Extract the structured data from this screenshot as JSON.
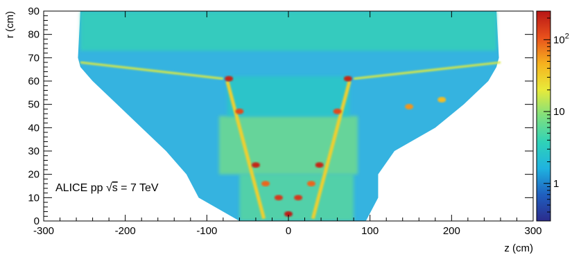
{
  "chart_data": {
    "type": "heatmap",
    "title": "",
    "xlabel": "z (cm)",
    "ylabel": "r (cm)",
    "xlim": [
      -300,
      300
    ],
    "ylim": [
      0,
      90
    ],
    "x_ticks": [
      -300,
      -200,
      -100,
      0,
      100,
      200,
      300
    ],
    "y_ticks": [
      0,
      10,
      20,
      30,
      40,
      50,
      60,
      70,
      80,
      90
    ],
    "annotation": {
      "prefix": "ALICE  pp  ",
      "sqrt": "√",
      "sqrt_arg": "s",
      "suffix": " = 7 TeV"
    },
    "colorbar": {
      "scale": "log",
      "range": [
        0.3,
        250
      ],
      "labels": [
        {
          "value": 1,
          "text": "1"
        },
        {
          "value": 10,
          "text": "10"
        },
        {
          "value": 100,
          "text": "10",
          "sup": "2"
        }
      ],
      "colors": [
        "#2b2b8c",
        "#1f5fbf",
        "#1fb2e0",
        "#2fd2b8",
        "#7ee07e",
        "#e8ea3a",
        "#f6b21e",
        "#e8501c",
        "#b81616"
      ]
    },
    "layers": {
      "background_z_edges": [
        [
          0,
          -60,
          95
        ],
        [
          10,
          -110,
          110
        ],
        [
          20,
          -125,
          110
        ],
        [
          30,
          -150,
          130
        ],
        [
          40,
          -180,
          180
        ],
        [
          50,
          -210,
          215
        ],
        [
          60,
          -240,
          245
        ],
        [
          66,
          -255,
          255
        ],
        [
          70,
          -258,
          258
        ],
        [
          90,
          -255,
          255
        ]
      ],
      "density_levels": [
        {
          "r": [
            73,
            90
          ],
          "z": [
            -255,
            255
          ],
          "value": 4
        },
        {
          "r": [
            0,
            20
          ],
          "z": [
            -60,
            80
          ],
          "value": 6
        },
        {
          "r": [
            20,
            45
          ],
          "z": [
            -85,
            85
          ],
          "value": 8
        },
        {
          "r": [
            45,
            62
          ],
          "z": [
            -75,
            75
          ],
          "value": 3
        }
      ],
      "cone_lines": [
        {
          "z1": -75,
          "r1": 60,
          "z2": -30,
          "r2": 1,
          "value": 30
        },
        {
          "z1": 75,
          "r1": 60,
          "z2": 30,
          "r2": 1,
          "value": 30
        }
      ],
      "horizontal_lines": [
        {
          "r": 77,
          "z": [
            -250,
            250
          ],
          "value": 25
        },
        {
          "r": 83,
          "z": [
            -240,
            240
          ],
          "value": 12
        },
        {
          "r": 40,
          "z": [
            -60,
            60
          ],
          "value": 40
        },
        {
          "r": 36,
          "z": [
            -55,
            55
          ],
          "value": 30
        },
        {
          "r": 28,
          "z": [
            -48,
            48
          ],
          "value": 35
        },
        {
          "r": 24,
          "z": [
            -45,
            45
          ],
          "value": 30
        },
        {
          "r": 12,
          "z": [
            -25,
            25
          ],
          "value": 60
        },
        {
          "r": 8,
          "z": [
            -20,
            20
          ],
          "value": 50
        },
        {
          "r": 3,
          "z": [
            -15,
            15
          ],
          "value": 150
        },
        {
          "r": 1.5,
          "z": [
            -12,
            12
          ],
          "value": 100
        }
      ],
      "slanted_lines": [
        {
          "z1": -255,
          "r1": 68,
          "z2": -80,
          "r2": 61,
          "value": 18
        },
        {
          "z1": 80,
          "r1": 61,
          "z2": 260,
          "r2": 68,
          "value": 18
        }
      ],
      "hot_spots": [
        {
          "z": -73,
          "r": 61,
          "value": 200
        },
        {
          "z": 73,
          "r": 61,
          "value": 200
        },
        {
          "z": -60,
          "r": 47,
          "value": 120
        },
        {
          "z": 60,
          "r": 47,
          "value": 120
        },
        {
          "z": -40,
          "r": 24,
          "value": 200
        },
        {
          "z": 38,
          "r": 24,
          "value": 200
        },
        {
          "z": -12,
          "r": 10,
          "value": 150
        },
        {
          "z": 12,
          "r": 10,
          "value": 150
        },
        {
          "z": 0,
          "r": 3,
          "value": 230
        },
        {
          "z": -28,
          "r": 16,
          "value": 90
        },
        {
          "z": 28,
          "r": 16,
          "value": 90
        },
        {
          "z": 148,
          "r": 49,
          "value": 60
        },
        {
          "z": 188,
          "r": 52,
          "value": 40
        }
      ],
      "vertical_lines": [
        {
          "z": -255,
          "r": [
            65,
            90
          ],
          "value": 8
        },
        {
          "z": 255,
          "r": [
            65,
            90
          ],
          "value": 8
        },
        {
          "z": 85,
          "r": [
            5,
            50
          ],
          "value": 12
        },
        {
          "z": 148,
          "r": [
            45,
            58
          ],
          "value": 20
        },
        {
          "z": 190,
          "r": [
            48,
            58
          ],
          "value": 15
        }
      ]
    }
  }
}
